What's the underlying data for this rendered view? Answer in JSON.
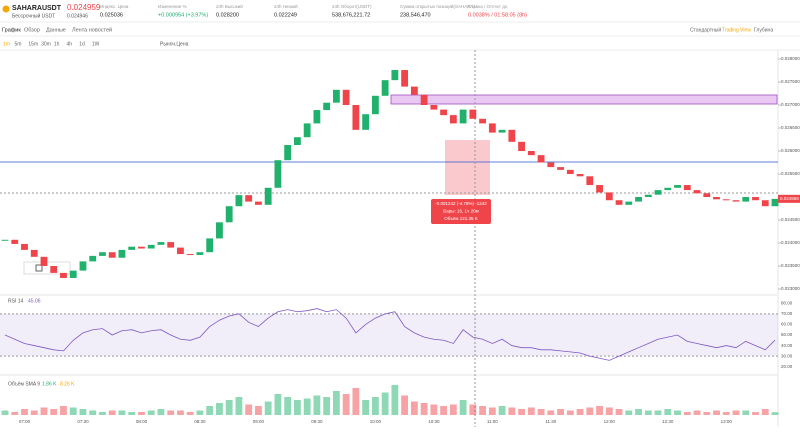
{
  "header": {
    "symbol": "SAHARAUSDT",
    "price": "0.024959",
    "subtitle": "Бессрочный USDT",
    "mark_price": "0.024946",
    "stats": [
      {
        "label": "Индекс. Цена",
        "value": "0.025036"
      },
      {
        "label": "Изменение %",
        "value": "+0.000954 (+3.97%)"
      },
      {
        "label": "24h Высокий",
        "value": "0.028200"
      },
      {
        "label": "24h Низкий",
        "value": "0.022249"
      },
      {
        "label": "24h Оборот(USDT)",
        "value": "538,676,221.72"
      },
      {
        "label": "Сумма открытых позиций(SAHARA)",
        "value": "238,546,470"
      },
      {
        "label": "Ставка / Отсчет до",
        "value": "0.0038% / 01:58:05 (8h)"
      }
    ]
  },
  "tabs": [
    "График",
    "Обзор",
    "Данные",
    "Лента новостей"
  ],
  "views": [
    "Стандартный",
    "Trading View",
    "Глубина"
  ],
  "intervals": [
    "1m",
    "5m",
    "15m",
    "30m",
    "1h",
    "4h",
    "1d",
    "1W"
  ],
  "price_type": "Рыноч.Цена",
  "chart": {
    "type": "candlestick",
    "up_color": "#20b26c",
    "down_color": "#ef454a",
    "closes": [
      0.02407,
      0.02398,
      0.02385,
      0.0237,
      0.0235,
      0.02335,
      0.02324,
      0.0234,
      0.0236,
      0.02372,
      0.0238,
      0.02368,
      0.02385,
      0.02392,
      0.02388,
      0.02396,
      0.02402,
      0.0239,
      0.02376,
      0.02374,
      0.0238,
      0.0241,
      0.02445,
      0.0248,
      0.02504,
      0.0249,
      0.02483,
      0.0252,
      0.0258,
      0.02613,
      0.0263,
      0.0266,
      0.02689,
      0.02705,
      0.02733,
      0.027,
      0.02646,
      0.0268,
      0.0272,
      0.02754,
      0.02776,
      0.0274,
      0.02722,
      0.027,
      0.0269,
      0.02678,
      0.0266,
      0.0269,
      0.0267,
      0.0266,
      0.0264,
      0.02646,
      0.0262,
      0.026,
      0.02591,
      0.02575,
      0.02565,
      0.02559,
      0.0255,
      0.02545,
      0.02526,
      0.0251,
      0.02493,
      0.02483,
      0.0249,
      0.025,
      0.02505,
      0.02515,
      0.0252,
      0.02526,
      0.02515,
      0.02508,
      0.025,
      0.02495,
      0.02493,
      0.0249,
      0.025,
      0.02493,
      0.0248,
      0.02496
    ],
    "ylim": [
      0.022935,
      0.028152
    ],
    "yticks": [
      {
        "value": 0.028,
        "label": "0.028000"
      },
      {
        "value": 0.0275,
        "label": "0.027500"
      },
      {
        "value": 0.027,
        "label": "0.027000"
      },
      {
        "value": 0.0265,
        "label": "0.026500"
      },
      {
        "value": 0.026,
        "label": "0.026000"
      },
      {
        "value": 0.0255,
        "label": "0.025500"
      },
      {
        "value": 0.025,
        "label": "0.025000"
      },
      {
        "value": 0.0245,
        "label": "0.024500"
      },
      {
        "value": 0.024,
        "label": "0.024000"
      },
      {
        "value": 0.0235,
        "label": "0.023500"
      },
      {
        "value": 0.023,
        "label": "0.023000"
      }
    ],
    "time_labels": [
      "07:00",
      "07:30",
      "08:00",
      "08:30",
      "09:00",
      "09:30",
      "10:00",
      "10:30",
      "11:00",
      "11:30",
      "12:00",
      "12:30",
      "13:00"
    ],
    "tooltip": [
      "-0.001242 (-4.78%) -1242",
      "Бары: 16, 1ч 20м",
      "Объём 121.35 K"
    ],
    "rsi": {
      "title": "RSI 14",
      "value": "45.06",
      "ylim": [
        15,
        85
      ],
      "yticks": [
        {
          "value": 80,
          "label": "80.00"
        },
        {
          "value": 70,
          "label": "70.00"
        },
        {
          "value": 60,
          "label": "60.00"
        },
        {
          "value": 50,
          "label": "50.00"
        },
        {
          "value": 40,
          "label": "40.00"
        },
        {
          "value": 30,
          "label": "30.00"
        },
        {
          "value": 20,
          "label": "20.00"
        }
      ],
      "band": [
        30,
        70
      ],
      "values": [
        50,
        46,
        42,
        40,
        38,
        36,
        35,
        45,
        52,
        55,
        56,
        50,
        54,
        55,
        52,
        54,
        55,
        50,
        46,
        45,
        48,
        58,
        64,
        68,
        70,
        62,
        58,
        66,
        72,
        74,
        72,
        73,
        75,
        72,
        74,
        66,
        52,
        60,
        66,
        70,
        72,
        58,
        52,
        48,
        46,
        45,
        42,
        55,
        48,
        46,
        42,
        46,
        40,
        38,
        38,
        36,
        36,
        35,
        34,
        33,
        30,
        28,
        26,
        30,
        34,
        38,
        42,
        46,
        48,
        50,
        44,
        42,
        40,
        38,
        40,
        38,
        44,
        40,
        36,
        45.06
      ]
    },
    "volume": {
      "title": "Объём SMA 9",
      "labels": [
        "1.86 K",
        "8.26 K"
      ],
      "ylim": [
        0,
        22
      ],
      "values": [
        3,
        2,
        4,
        3,
        5,
        4,
        6,
        5,
        4,
        3,
        2,
        3,
        3,
        2,
        2,
        3,
        4,
        3,
        3,
        2,
        3,
        6,
        8,
        10,
        12,
        7,
        6,
        9,
        14,
        12,
        10,
        11,
        13,
        12,
        16,
        14,
        18,
        10,
        12,
        15,
        20,
        13,
        9,
        8,
        7,
        6,
        7,
        10,
        7,
        6,
        5,
        6,
        5,
        4,
        5,
        4,
        3,
        4,
        3,
        4,
        5,
        6,
        5,
        4,
        3,
        4,
        3,
        3,
        4,
        3,
        2,
        3,
        2,
        3,
        2,
        3,
        3,
        2,
        4,
        1.86
      ]
    }
  }
}
